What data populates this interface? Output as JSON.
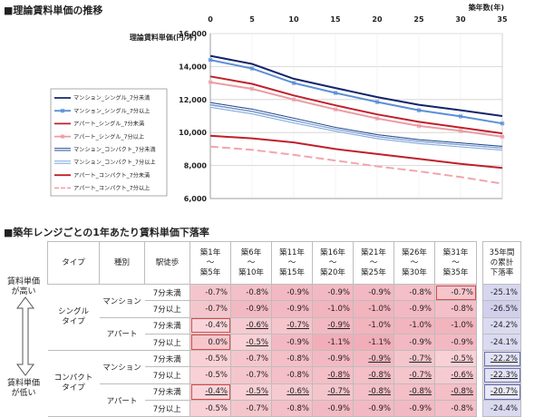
{
  "chart_title": "■理論賃料単価の推移",
  "table_title": "■築年レンジごとの1年あたり賃料単価下落率",
  "chart_data": {
    "type": "line",
    "ylabel": "理論賃料単価(円/坪)",
    "xlabel": "築年数(年)",
    "x": [
      0,
      5,
      10,
      15,
      20,
      25,
      30,
      35
    ],
    "xticks": [
      "0",
      "5",
      "10",
      "15",
      "20",
      "25",
      "30",
      "35"
    ],
    "ylim": [
      6000,
      16000
    ],
    "yticks": [
      "6,000",
      "8,000",
      "10,000",
      "12,000",
      "14,000",
      "16,000"
    ],
    "ytick_values": [
      6000,
      8000,
      10000,
      12000,
      14000,
      16000
    ],
    "series": [
      {
        "name": "マンション_シングル_7分未満",
        "color": "#14246b",
        "dash": "solid",
        "marker": "none",
        "values": [
          14650,
          14160,
          13260,
          12700,
          12150,
          11680,
          11350,
          11000
        ]
      },
      {
        "name": "マンション_シングル_7分以上",
        "color": "#5b8fd6",
        "dash": "solid",
        "marker": "star",
        "values": [
          14400,
          13880,
          13000,
          12400,
          11850,
          11350,
          10980,
          10550
        ]
      },
      {
        "name": "アパート_シングル_7分未満",
        "color": "#c0202a",
        "dash": "solid",
        "marker": "none",
        "values": [
          13400,
          12950,
          12250,
          11650,
          11100,
          10650,
          10300,
          9950
        ]
      },
      {
        "name": "アパート_シングル_7分以上",
        "color": "#ec9ba4",
        "dash": "solid",
        "marker": "star",
        "values": [
          13050,
          12650,
          12000,
          11400,
          10850,
          10400,
          10100,
          9750
        ]
      },
      {
        "name": "マンション_コンパクト_7分未満",
        "color": "#2b4d90",
        "dash": "double",
        "marker": "none",
        "values": [
          11750,
          11350,
          10800,
          10250,
          9800,
          9500,
          9300,
          9100
        ]
      },
      {
        "name": "マンション_コンパクト_7分以上",
        "color": "#7fa6dc",
        "dash": "double",
        "marker": "none",
        "values": [
          11600,
          11200,
          10650,
          10150,
          9700,
          9400,
          9200,
          9000
        ]
      },
      {
        "name": "アパート_コンパクト_7分未満",
        "color": "#c0202a",
        "dash": "solid",
        "marker": "none",
        "values": [
          9800,
          9650,
          9400,
          9000,
          8700,
          8400,
          8100,
          7850
        ]
      },
      {
        "name": "アパート_コンパクト_7分以上",
        "color": "#f2a5ad",
        "dash": "dashed",
        "marker": "none",
        "values": [
          9150,
          8950,
          8650,
          8300,
          7950,
          7650,
          7300,
          6900
        ]
      }
    ]
  },
  "table": {
    "headers": [
      "タイプ",
      "種別",
      "駅徒歩"
    ],
    "range_headers": [
      [
        "築1年",
        "～",
        "築5年"
      ],
      [
        "築6年",
        "～",
        "築10年"
      ],
      [
        "築11年",
        "～",
        "築15年"
      ],
      [
        "築16年",
        "～",
        "築20年"
      ],
      [
        "築21年",
        "～",
        "築25年"
      ],
      [
        "築26年",
        "～",
        "築30年"
      ],
      [
        "築31年",
        "～",
        "築35年"
      ]
    ],
    "cumulative_header": [
      "35年間",
      "の累計",
      "下落率"
    ],
    "types": [
      "シングル\nタイプ",
      "コンパクト\nタイプ"
    ],
    "kinds": [
      "マンション",
      "アパート"
    ],
    "walks": [
      "7分未満",
      "7分以上"
    ],
    "rows": [
      {
        "values": [
          "-0.7%",
          "-0.8%",
          "-0.9%",
          "-0.9%",
          "-0.9%",
          "-0.8%",
          "-0.7%"
        ],
        "total": "-25.1%"
      },
      {
        "values": [
          "-0.7%",
          "-0.9%",
          "-0.9%",
          "-1.0%",
          "-1.0%",
          "-0.9%",
          "-0.8%"
        ],
        "total": "-26.5%"
      },
      {
        "values": [
          "-0.4%",
          "-0.6%",
          "-0.7%",
          "-0.9%",
          "-1.0%",
          "-1.0%",
          "-1.0%"
        ],
        "total": "-24.2%"
      },
      {
        "values": [
          "0.0%",
          "-0.5%",
          "-0.9%",
          "-1.1%",
          "-1.1%",
          "-0.9%",
          "-0.9%"
        ],
        "total": "-24.1%"
      },
      {
        "values": [
          "-0.5%",
          "-0.7%",
          "-0.8%",
          "-0.9%",
          "-0.9%",
          "-0.7%",
          "-0.5%"
        ],
        "total": "-22.2%"
      },
      {
        "values": [
          "-0.5%",
          "-0.7%",
          "-0.8%",
          "-0.8%",
          "-0.8%",
          "-0.7%",
          "-0.6%"
        ],
        "total": "-22.3%"
      },
      {
        "values": [
          "-0.4%",
          "-0.5%",
          "-0.6%",
          "-0.7%",
          "-0.8%",
          "-0.8%",
          "-0.8%"
        ],
        "total": "-20.7%"
      },
      {
        "values": [
          "-0.5%",
          "-0.7%",
          "-0.8%",
          "-0.9%",
          "-0.9%",
          "-0.9%",
          "-0.8%"
        ],
        "total": "-24.4%"
      }
    ],
    "side_high": "賃料単価\nが高い",
    "side_low": "賃料単価\nが低い"
  }
}
